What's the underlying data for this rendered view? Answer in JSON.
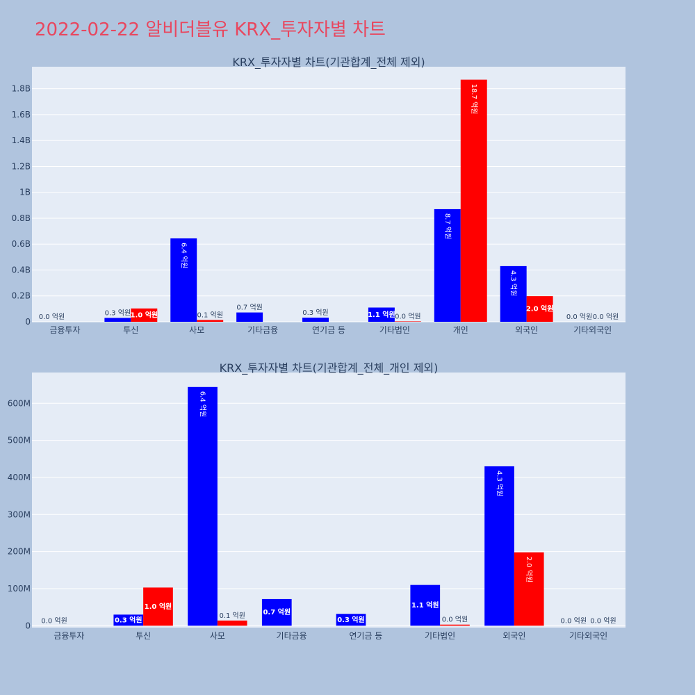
{
  "page": {
    "title": "2022-02-22 알비더블유 KRX_투자자별 차트"
  },
  "colors": {
    "background": "#b0c4de",
    "plot_bg": "#e5ecf6",
    "grid": "#ffffff",
    "buy": "#0000ff",
    "sell": "#ff0000",
    "title": "#e8475f",
    "text": "#2a3f5f"
  },
  "chart_data": [
    {
      "type": "bar",
      "title": "KRX_투자자별 차트(기관합계_전체 제외)",
      "categories": [
        "금융투자",
        "투신",
        "사모",
        "기타금융",
        "연기금 등",
        "기타법인",
        "개인",
        "외국인",
        "기타외국인"
      ],
      "series": [
        {
          "values": [
            0,
            30000000,
            644000000,
            72000000,
            32000000,
            110000000,
            870000000,
            430000000,
            0
          ],
          "labels": [
            "0.0 억원",
            "0.3 억원",
            "6.4 억원",
            "0.7 억원",
            "0.3 억원",
            "1.1 억원",
            "8.7 억원",
            "4.3 억원",
            "0.0 억원"
          ]
        },
        {
          "values": [
            0,
            103000000,
            14000000,
            0,
            0,
            3000000,
            1870000000,
            198000000,
            0
          ],
          "labels": [
            "",
            "1.0 억원",
            "0.1 억원",
            "",
            "",
            "0.0 억원",
            "18.7 억원",
            "2.0 억원",
            "0.0 억원"
          ]
        }
      ],
      "ylim": [
        0,
        1970000000
      ],
      "yticks": [
        0,
        200000000,
        400000000,
        600000000,
        800000000,
        1000000000,
        1200000000,
        1400000000,
        1600000000,
        1800000000
      ],
      "ytick_labels": [
        "0",
        "0.2B",
        "0.4B",
        "0.6B",
        "0.8B",
        "1B",
        "1.2B",
        "1.4B",
        "1.6B",
        "1.8B"
      ],
      "grid": true
    },
    {
      "type": "bar",
      "title": "KRX_투자자별 차트(기관합계_전체_개인 제외)",
      "categories": [
        "금융투자",
        "투신",
        "사모",
        "기타금융",
        "연기금 등",
        "기타법인",
        "외국인",
        "기타외국인"
      ],
      "series": [
        {
          "values": [
            0,
            30000000,
            644000000,
            72000000,
            32000000,
            110000000,
            430000000,
            0
          ],
          "labels": [
            "0.0 억원",
            "0.3 억원",
            "6.4 억원",
            "0.7 억원",
            "0.3 억원",
            "1.1 억원",
            "4.3 억원",
            "0.0 억원"
          ]
        },
        {
          "values": [
            0,
            103000000,
            14000000,
            0,
            0,
            3000000,
            198000000,
            0
          ],
          "labels": [
            "",
            "1.0 억원",
            "0.1 억원",
            "",
            "",
            "0.0 억원",
            "2.0 억원",
            "0.0 억원"
          ]
        }
      ],
      "ylim": [
        -5000000,
        683000000
      ],
      "yticks": [
        0,
        100000000,
        200000000,
        300000000,
        400000000,
        500000000,
        600000000
      ],
      "ytick_labels": [
        "0",
        "100M",
        "200M",
        "300M",
        "400M",
        "500M",
        "600M"
      ],
      "grid": true
    }
  ]
}
